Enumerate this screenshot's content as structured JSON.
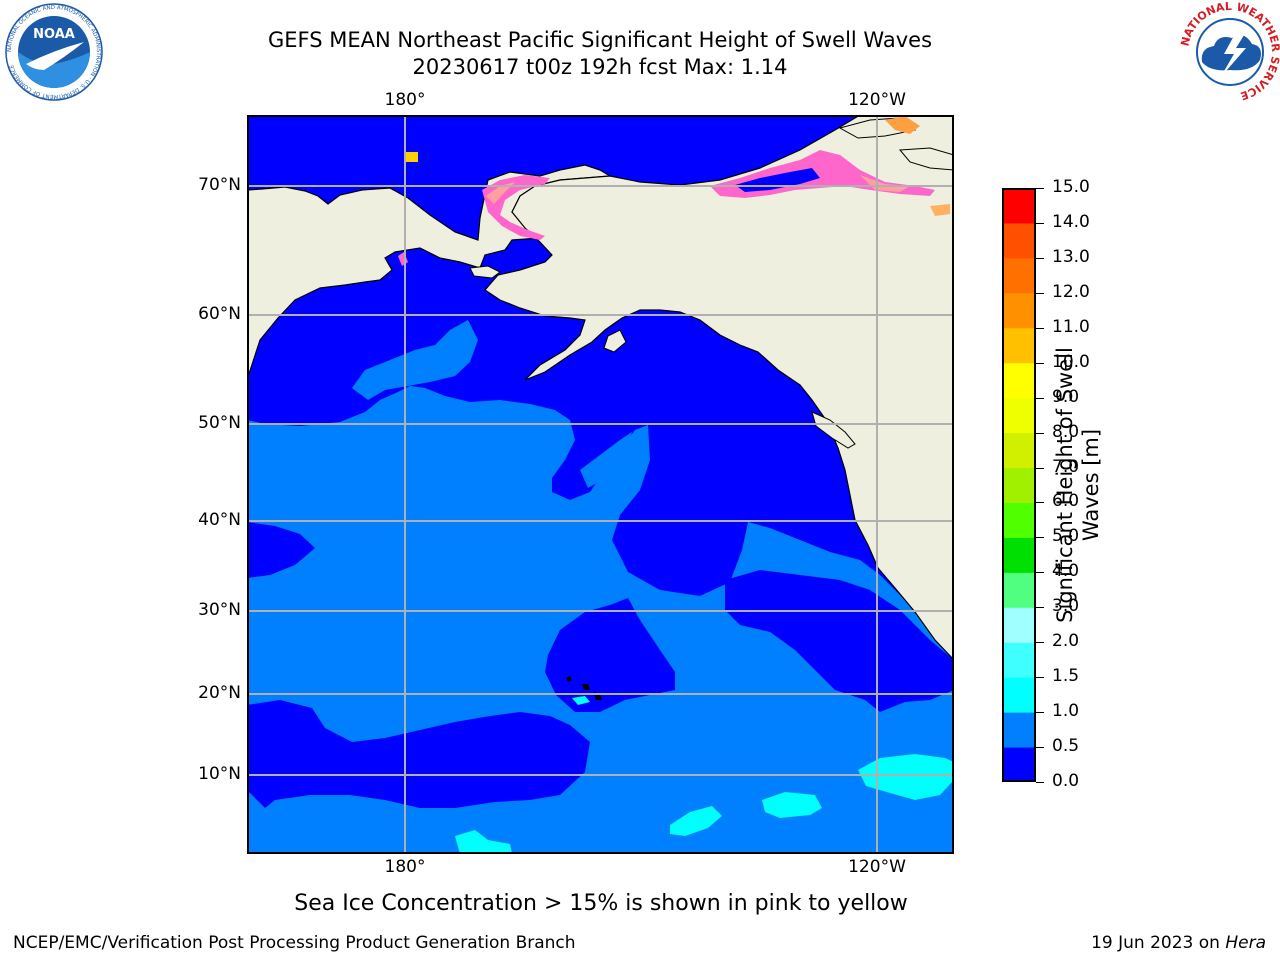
{
  "header": {
    "title_line1": "GEFS MEAN Northeast Pacific Significant Height of Swell Waves",
    "title_line2": "20230617 t00z 192h fcst   Max: 1.14"
  },
  "logos": {
    "noaa": {
      "text": "NOAA",
      "ring_text": "NATIONAL OCEANIC AND ATMOSPHERIC ADMINISTRATION · U.S. DEPARTMENT OF COMMERCE",
      "color": "#1a5aa8"
    },
    "nws": {
      "ring_text": "NATIONAL WEATHER SERVICE",
      "color": "#d41e24"
    }
  },
  "map": {
    "lon_labels": [
      "180°",
      "120°W"
    ],
    "lat_labels": [
      "70°N",
      "60°N",
      "50°N",
      "40°N",
      "30°N",
      "20°N",
      "10°N"
    ],
    "colors": {
      "land": "#efefe0",
      "band_0_0_5": "#0000ff",
      "band_0_5_1_0": "#0080ff",
      "band_1_0_1_5": "#00ffff",
      "grid": "#b0b0b0",
      "ice": "#ff66cc"
    }
  },
  "colorbar": {
    "title_line1": "Significant Height of Swell",
    "title_line2": "Waves [m]",
    "ticks": [
      "0.0",
      "0.5",
      "1.0",
      "1.5",
      "2.0",
      "3.0",
      "4.0",
      "5.0",
      "6.0",
      "7.0",
      "8.0",
      "9.0",
      "10.0",
      "11.0",
      "12.0",
      "13.0",
      "14.0",
      "15.0"
    ],
    "colors": [
      "#0000ff",
      "#0080ff",
      "#00ffff",
      "#40ffff",
      "#a0ffff",
      "#50ff80",
      "#00e000",
      "#50ff00",
      "#a0f000",
      "#d0f000",
      "#f0ff00",
      "#ffff00",
      "#ffc000",
      "#ff9000",
      "#ff7000",
      "#ff5000",
      "#ff0000"
    ]
  },
  "footer": {
    "note": "Sea Ice Concentration > 15% is shown in pink to yellow",
    "left": "NCEP/EMC/Verification Post Processing Product Generation Branch",
    "right_prefix": "19 Jun 2023 on ",
    "right_machine": "Hera"
  }
}
